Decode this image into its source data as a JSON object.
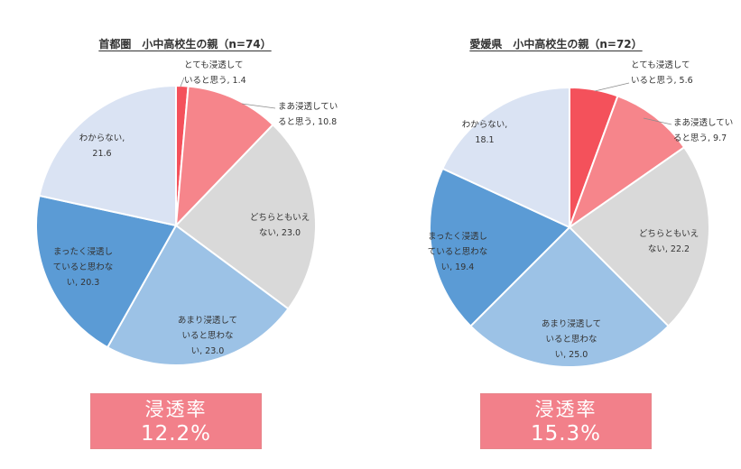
{
  "chart_data": [
    {
      "type": "pie",
      "title": "首都圏　小中高校生の親（n=74）",
      "slices": [
        {
          "label_lines": [
            "とても浸透して",
            "いると思う, 1.4"
          ],
          "value": 1.4,
          "color": "#f4515b"
        },
        {
          "label_lines": [
            "まあ浸透してい",
            "ると思う, 10.8"
          ],
          "value": 10.8,
          "color": "#f6858b"
        },
        {
          "label_lines": [
            "どちらともいえ",
            "ない, 23.0"
          ],
          "value": 23.0,
          "color": "#d9d9d9"
        },
        {
          "label_lines": [
            "あまり浸透して",
            "いると思わな",
            "い, 23.0"
          ],
          "value": 23.0,
          "color": "#9cc2e6"
        },
        {
          "label_lines": [
            "まったく浸透し",
            "ていると思わな",
            "い, 20.3"
          ],
          "value": 20.3,
          "color": "#5b9bd5"
        },
        {
          "label_lines": [
            "わからない,",
            "21.6"
          ],
          "value": 21.6,
          "color": "#dae3f3"
        }
      ],
      "rate_label": "浸透率",
      "rate_value": "12.2%"
    },
    {
      "type": "pie",
      "title": "愛媛県　小中高校生の親（n=72）",
      "slices": [
        {
          "label_lines": [
            "とても浸透して",
            "いると思う, 5.6"
          ],
          "value": 5.6,
          "color": "#f4515b"
        },
        {
          "label_lines": [
            "まあ浸透してい",
            "ると思う, 9.7"
          ],
          "value": 9.7,
          "color": "#f6858b"
        },
        {
          "label_lines": [
            "どちらともいえ",
            "ない, 22.2"
          ],
          "value": 22.2,
          "color": "#d9d9d9"
        },
        {
          "label_lines": [
            "あまり浸透して",
            "いると思わな",
            "い, 25.0"
          ],
          "value": 25.0,
          "color": "#9cc2e6"
        },
        {
          "label_lines": [
            "まったく浸透し",
            "ていると思わな",
            "い, 19.4"
          ],
          "value": 19.4,
          "color": "#5b9bd5"
        },
        {
          "label_lines": [
            "わからない,",
            "18.1"
          ],
          "value": 18.1,
          "color": "#dae3f3"
        }
      ],
      "rate_label": "浸透率",
      "rate_value": "15.3%"
    }
  ]
}
